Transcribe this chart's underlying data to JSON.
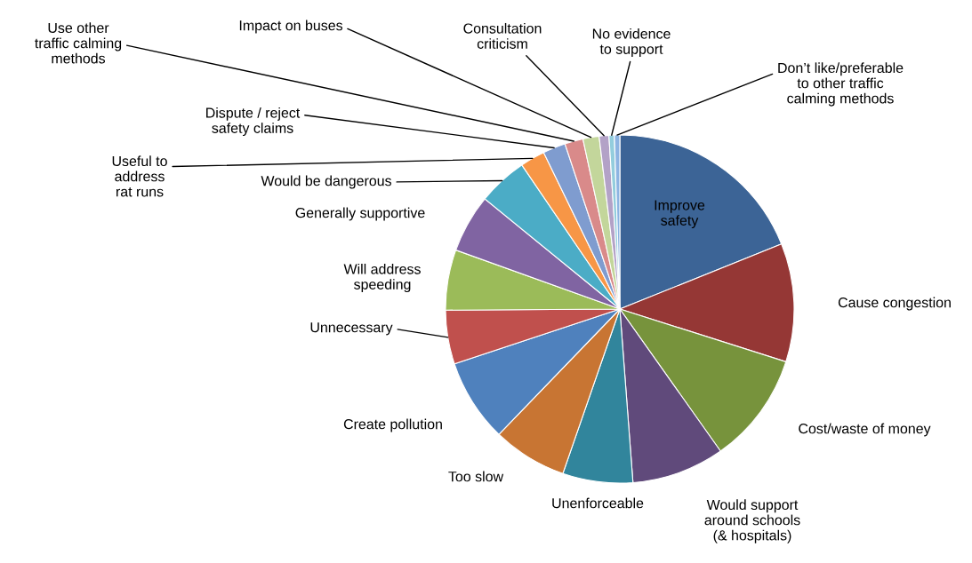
{
  "chart_data": {
    "type": "pie",
    "categories": [
      "Improve\nsafety",
      "Cause congestion",
      "Cost/waste of money",
      "Would support\naround schools\n(& hospitals)",
      "Unenforceable",
      "Too slow",
      "Create pollution",
      "Unnecessary",
      "Will address\nspeeding",
      "Generally supportive",
      "Would be dangerous",
      "Useful to\naddress\nrat runs",
      "Dispute / reject\nsafety claims",
      "Use other\ntraffic calming\nmethods",
      "Impact on buses",
      "Consultation\ncriticism",
      "No evidence\nto support",
      "Don’t like/preferable\nto other traffic\ncalming methods"
    ],
    "values": [
      18.9,
      11,
      10.3,
      8.6,
      6.5,
      6.9,
      7.7,
      5,
      5.6,
      5.4,
      4.6,
      2.3,
      2.1,
      1.7,
      1.5,
      0.9,
      0.5,
      0.5
    ],
    "colors": [
      "#3c6496",
      "#953735",
      "#77933c",
      "#604a7b",
      "#31859c",
      "#c87533",
      "#4f81bd",
      "#c0504d",
      "#9bbb59",
      "#8064a2",
      "#4bacc6",
      "#f79646",
      "#7f9ccf",
      "#d98a8a",
      "#c3d69b",
      "#b3a2c7",
      "#93cddd",
      "#8db4e2"
    ]
  }
}
